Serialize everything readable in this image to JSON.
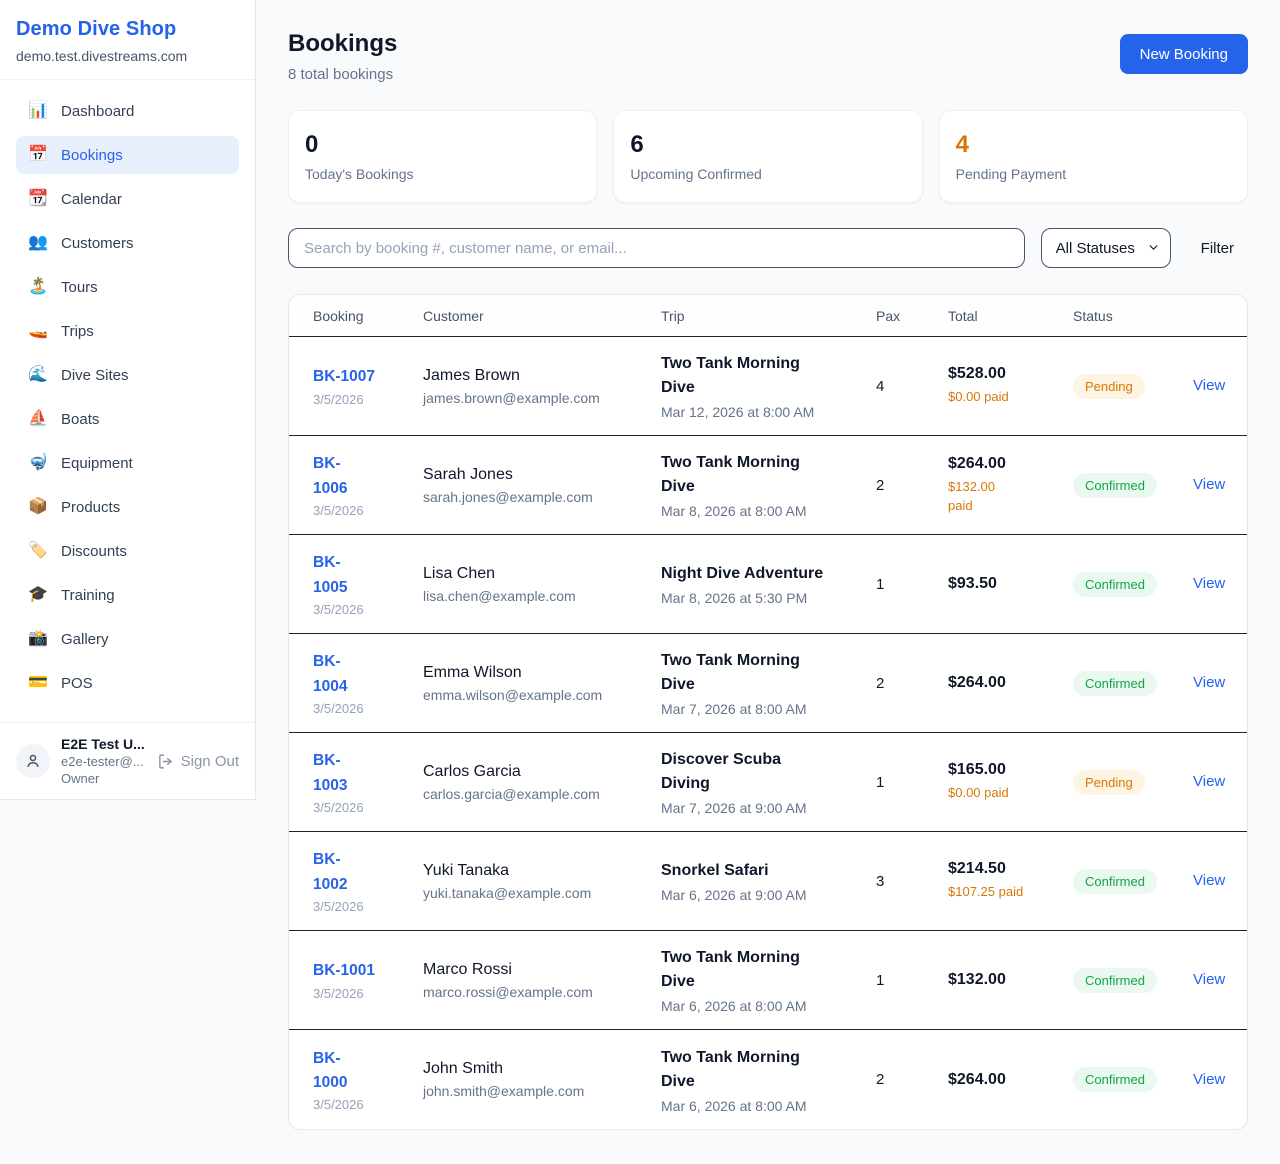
{
  "app": {
    "bg": "#f8fafc",
    "accent": "#2563eb"
  },
  "sidebar": {
    "shop_name": "Demo Dive Shop",
    "shop_domain": "demo.test.divestreams.com",
    "items": [
      {
        "icon_name": "bar-chart-icon",
        "icon": "📊",
        "label": "Dashboard",
        "active": false
      },
      {
        "icon_name": "calendar-icon",
        "icon": "📅",
        "label": "Bookings",
        "active": true
      },
      {
        "icon_name": "tear-off-calendar-icon",
        "icon": "📆",
        "label": "Calendar",
        "active": false
      },
      {
        "icon_name": "people-icon",
        "icon": "👥",
        "label": "Customers",
        "active": false
      },
      {
        "icon_name": "island-icon",
        "icon": "🏝️",
        "label": "Tours",
        "active": false
      },
      {
        "icon_name": "speedboat-icon",
        "icon": "🚤",
        "label": "Trips",
        "active": false
      },
      {
        "icon_name": "wave-icon",
        "icon": "🌊",
        "label": "Dive Sites",
        "active": false
      },
      {
        "icon_name": "sailboat-icon",
        "icon": "⛵",
        "label": "Boats",
        "active": false
      },
      {
        "icon_name": "diving-mask-icon",
        "icon": "🤿",
        "label": "Equipment",
        "active": false
      },
      {
        "icon_name": "package-icon",
        "icon": "📦",
        "label": "Products",
        "active": false
      },
      {
        "icon_name": "tag-icon",
        "icon": "🏷️",
        "label": "Discounts",
        "active": false
      },
      {
        "icon_name": "graduation-cap-icon",
        "icon": "🎓",
        "label": "Training",
        "active": false
      },
      {
        "icon_name": "camera-icon",
        "icon": "📸",
        "label": "Gallery",
        "active": false
      },
      {
        "icon_name": "credit-card-icon",
        "icon": "💳",
        "label": "POS",
        "active": false
      }
    ],
    "user": {
      "name": "E2E Test U...",
      "email": "e2e-tester@...",
      "role": "Owner",
      "sign_out": "Sign Out"
    }
  },
  "header": {
    "title": "Bookings",
    "subtitle": "8 total bookings",
    "new_booking": "New Booking"
  },
  "stats": [
    {
      "value": "0",
      "label": "Today's Bookings",
      "value_color": "#0f172a"
    },
    {
      "value": "6",
      "label": "Upcoming Confirmed",
      "value_color": "#0f172a"
    },
    {
      "value": "4",
      "label": "Pending Payment",
      "value_color": "#d97706"
    }
  ],
  "filters": {
    "search_placeholder": "Search by booking #, customer name, or email...",
    "search_value": "",
    "status_selected": "All Statuses",
    "filter": "Filter"
  },
  "table": {
    "headers": [
      "Booking",
      "Customer",
      "Trip",
      "Pax",
      "Total",
      "Status"
    ],
    "view": "View",
    "status_styles": {
      "Pending": {
        "text": "#d97706",
        "bg": "#fdf5e2"
      },
      "Confirmed": {
        "text": "#16a34a",
        "bg": "#e9f9ef"
      }
    },
    "paid_color": "#d97706",
    "rows": [
      {
        "id": "BK-1007",
        "date": "3/5/2026",
        "customer": "James Brown",
        "email": "james.brown@example.com",
        "trip": "Two Tank Morning\nDive",
        "datetime": "Mar 12, 2026 at 8:00 AM",
        "pax": "4",
        "total": "$528.00",
        "paid": "$0.00 paid",
        "status": "Pending"
      },
      {
        "id": "BK-\n1006",
        "date": "3/5/2026",
        "customer": "Sarah Jones",
        "email": "sarah.jones@example.com",
        "trip": "Two Tank Morning\nDive",
        "datetime": "Mar 8, 2026 at 8:00 AM",
        "pax": "2",
        "total": "$264.00",
        "paid": "$132.00\npaid",
        "status": "Confirmed"
      },
      {
        "id": "BK-\n1005",
        "date": "3/5/2026",
        "customer": "Lisa Chen",
        "email": "lisa.chen@example.com",
        "trip": "Night Dive Adventure",
        "datetime": "Mar 8, 2026 at 5:30 PM",
        "pax": "1",
        "total": "$93.50",
        "paid": "",
        "status": "Confirmed"
      },
      {
        "id": "BK-\n1004",
        "date": "3/5/2026",
        "customer": "Emma Wilson",
        "email": "emma.wilson@example.com",
        "trip": "Two Tank Morning\nDive",
        "datetime": "Mar 7, 2026 at 8:00 AM",
        "pax": "2",
        "total": "$264.00",
        "paid": "",
        "status": "Confirmed"
      },
      {
        "id": "BK-\n1003",
        "date": "3/5/2026",
        "customer": "Carlos Garcia",
        "email": "carlos.garcia@example.com",
        "trip": "Discover Scuba\nDiving",
        "datetime": "Mar 7, 2026 at 9:00 AM",
        "pax": "1",
        "total": "$165.00",
        "paid": "$0.00 paid",
        "status": "Pending"
      },
      {
        "id": "BK-\n1002",
        "date": "3/5/2026",
        "customer": "Yuki Tanaka",
        "email": "yuki.tanaka@example.com",
        "trip": "Snorkel Safari",
        "datetime": "Mar 6, 2026 at 9:00 AM",
        "pax": "3",
        "total": "$214.50",
        "paid": "$107.25 paid",
        "status": "Confirmed"
      },
      {
        "id": "BK-1001",
        "date": "3/5/2026",
        "customer": "Marco Rossi",
        "email": "marco.rossi@example.com",
        "trip": "Two Tank Morning\nDive",
        "datetime": "Mar 6, 2026 at 8:00 AM",
        "pax": "1",
        "total": "$132.00",
        "paid": "",
        "status": "Confirmed"
      },
      {
        "id": "BK-\n1000",
        "date": "3/5/2026",
        "customer": "John Smith",
        "email": "john.smith@example.com",
        "trip": "Two Tank Morning\nDive",
        "datetime": "Mar 6, 2026 at 8:00 AM",
        "pax": "2",
        "total": "$264.00",
        "paid": "",
        "status": "Confirmed"
      }
    ]
  }
}
